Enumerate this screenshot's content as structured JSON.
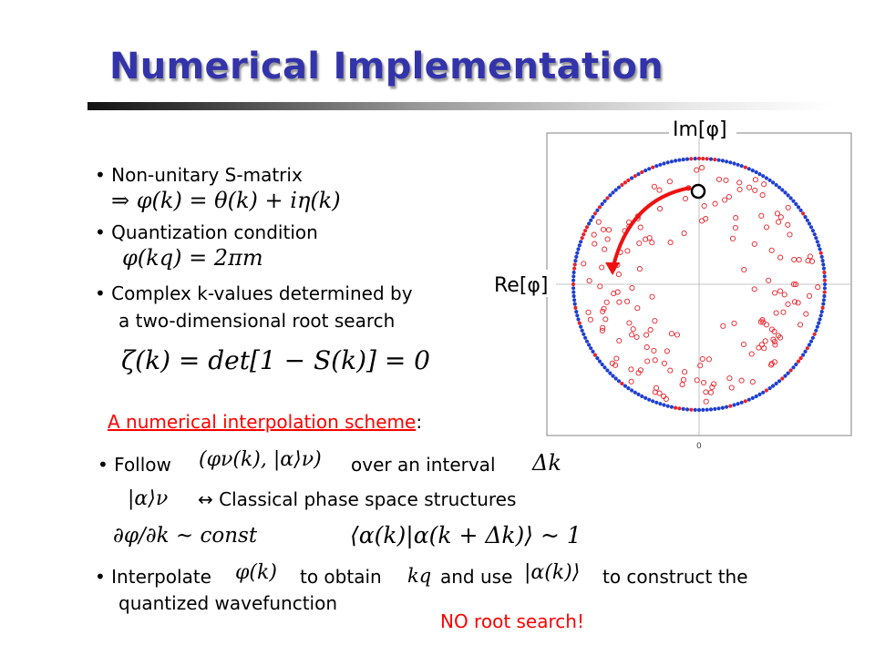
{
  "title": "Numerical Implementation",
  "bullets": {
    "b1": "Non-unitary S-matrix",
    "b1_formula": "⇒ φ(k) = θ(k) + iη(k)",
    "b2": "Quantization condition",
    "b2_formula": "φ(kq) = 2πm",
    "b3_line1": "Complex k-values determined by",
    "b3_line2": "a two-dimensional root search",
    "b3_formula": "ζ(k) = det[1 − S(k)] = 0"
  },
  "scheme": {
    "label": "A numerical interpolation scheme",
    "colon": ":"
  },
  "follow": {
    "word": "Follow",
    "formula": "(φν(k), |α⟩ν)",
    "over": "over an interval",
    "delta": "Δk"
  },
  "alpha_row": {
    "formula": "|α⟩ν",
    "text": "↔ Classical phase space structures"
  },
  "conditions": {
    "left": "∂φ/∂k ~ const",
    "right": "⟨α(k)|α(k + Δk)⟩ ~ 1"
  },
  "interp": {
    "word": "Interpolate",
    "phi": "φ(k)",
    "obtain": "to obtain",
    "kq": "kq",
    "and_use": "and use",
    "ket": "|α(k)⟩",
    "construct": "to construct the",
    "line2": "quantized wavefunction"
  },
  "note": "NO root search!",
  "figure": {
    "im_label": "Im[φ]",
    "re_label": "Re[φ]",
    "x_tick": "0",
    "colors": {
      "blue": "#1f3fd0",
      "red": "#e8222a",
      "frame": "#808080",
      "arrow": "#ee1111"
    }
  }
}
